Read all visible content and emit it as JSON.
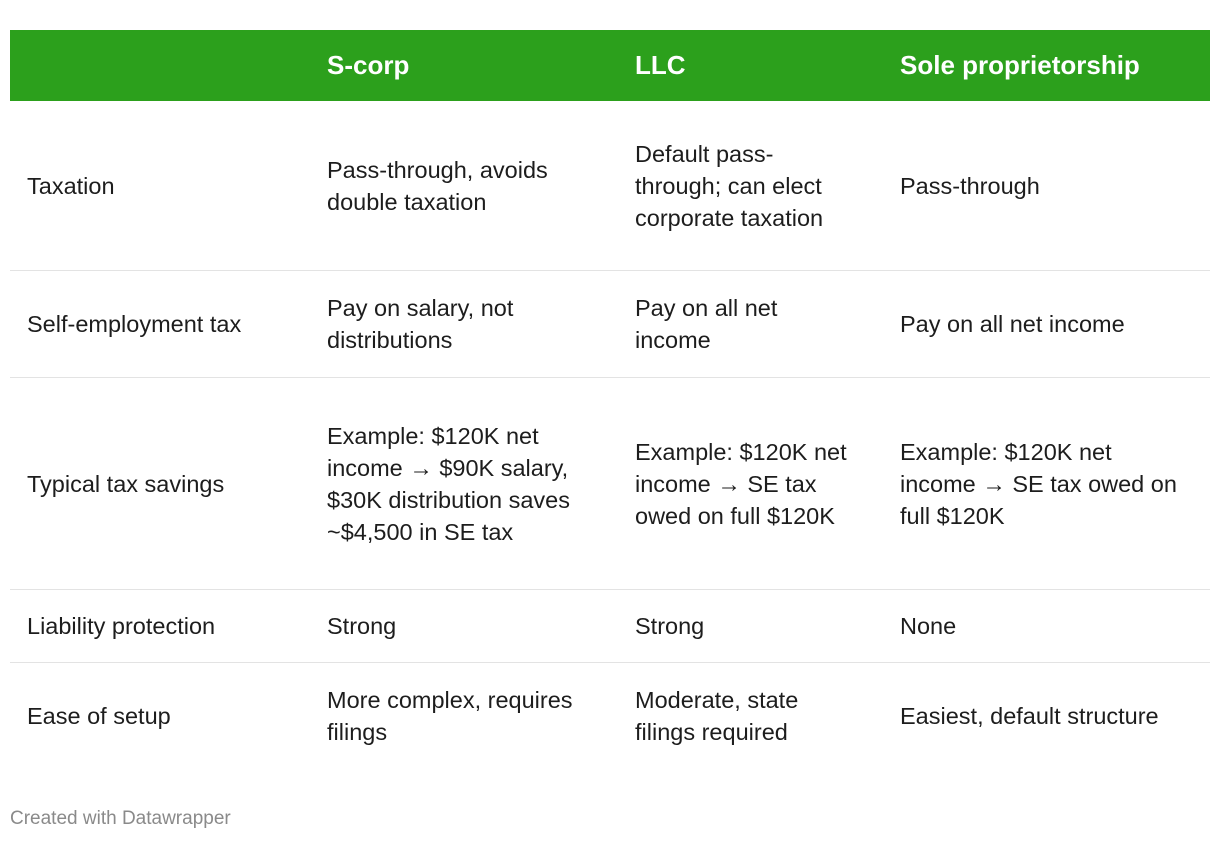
{
  "chart_data": {
    "type": "table",
    "header_color": "#2ca01c",
    "columns": [
      "",
      "S-corp",
      "LLC",
      "Sole proprietorship"
    ],
    "rows": [
      [
        "Taxation",
        "Pass-through, avoids double taxation",
        "Default pass-through; can elect corporate taxation",
        "Pass-through"
      ],
      [
        "Self-employment tax",
        "Pay on salary, not distributions",
        "Pay on all net income",
        "Pay on all net income"
      ],
      [
        "Typical tax savings",
        "Example: $120K net income → $90K salary, $30K distribution saves ~$4,500 in SE tax",
        "Example: $120K net income → SE tax owed on full $120K",
        "Example: $120K net income → SE tax owed on full $120K"
      ],
      [
        "Liability protection",
        "Strong",
        "Strong",
        "None"
      ],
      [
        "Ease of setup",
        "More complex, requires filings",
        "Moderate, state filings required",
        "Easiest, default structure"
      ]
    ]
  },
  "footer": "Created with Datawrapper"
}
